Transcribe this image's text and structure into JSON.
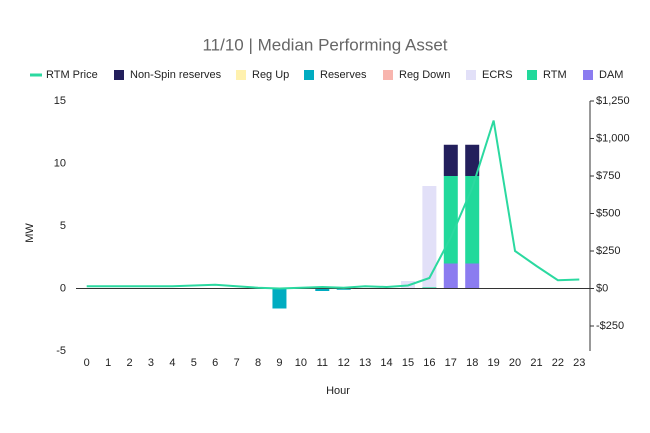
{
  "chart_data": {
    "type": "bar",
    "stacked": true,
    "title": "11/10 | Median Performing Asset",
    "x_label": "Hour",
    "y_label": "MW",
    "categories": [
      "0",
      "1",
      "2",
      "3",
      "4",
      "5",
      "6",
      "7",
      "8",
      "9",
      "10",
      "11",
      "12",
      "13",
      "14",
      "15",
      "16",
      "17",
      "18",
      "19",
      "20",
      "21",
      "22",
      "23"
    ],
    "ylim": [
      -5,
      15
    ],
    "yticks": [
      15,
      10,
      5,
      0,
      -5
    ],
    "y2lim": [
      -416.67,
      1250
    ],
    "y2ticks": [
      {
        "value": 1250,
        "label": "$1,250"
      },
      {
        "value": 1000,
        "label": "$1,000"
      },
      {
        "value": 750,
        "label": "$750"
      },
      {
        "value": 500,
        "label": "$500"
      },
      {
        "value": 250,
        "label": "$250"
      },
      {
        "value": 0,
        "label": "$0"
      },
      {
        "value": -250,
        "label": "-$250"
      }
    ],
    "grid": false,
    "legend": "top",
    "series": [
      {
        "name": "RTM Price",
        "type": "line",
        "axis": "y2",
        "color": "#2bd9a0",
        "values": [
          15,
          15,
          15,
          15,
          15,
          20,
          25,
          15,
          5,
          0,
          5,
          10,
          5,
          15,
          10,
          20,
          70,
          340,
          670,
          1120,
          250,
          150,
          55,
          60
        ]
      },
      {
        "name": "Non-Spin reserves",
        "color": "#231f5c",
        "values": [
          0,
          0,
          0,
          0,
          0,
          0,
          0,
          0,
          0,
          0,
          0,
          0,
          0,
          0,
          0,
          0,
          0,
          2.5,
          2.5,
          0,
          0,
          0,
          0,
          0
        ]
      },
      {
        "name": "Reg Up",
        "color": "#fff1ae",
        "values": [
          0,
          0,
          0,
          0,
          0,
          0,
          0,
          0,
          0,
          0,
          0,
          0,
          0,
          0,
          0,
          0,
          0,
          0,
          0,
          0,
          0,
          0,
          0,
          0
        ]
      },
      {
        "name": "Reserves",
        "color": "#00acc1",
        "values": [
          0,
          0,
          0,
          0,
          0,
          0,
          0,
          0,
          0,
          -1.6,
          0,
          -0.2,
          -0.1,
          0,
          0,
          0,
          0,
          0,
          0,
          0,
          0,
          0,
          0,
          0
        ]
      },
      {
        "name": "Reg Down",
        "color": "#f8b5ae",
        "values": [
          0,
          0,
          0,
          0,
          0,
          0,
          0,
          0,
          0,
          0,
          0,
          0,
          0,
          0,
          0,
          0,
          0,
          0,
          0,
          0,
          0,
          0,
          0,
          0
        ]
      },
      {
        "name": "ECRS",
        "color": "#e2e0f8",
        "values": [
          0,
          0,
          0,
          0,
          0,
          0,
          0,
          0,
          0,
          0,
          0,
          0,
          0,
          0,
          0,
          0.6,
          8.1,
          0,
          0,
          0,
          0,
          0,
          0,
          0
        ]
      },
      {
        "name": "RTM",
        "color": "#21d99b",
        "values": [
          0,
          0,
          0,
          0,
          0,
          0,
          0,
          0,
          0,
          0,
          0,
          0,
          0,
          0,
          0,
          0,
          0.1,
          7,
          7,
          0,
          0,
          0,
          0,
          0
        ]
      },
      {
        "name": "DAM",
        "color": "#8b7cf0",
        "values": [
          0,
          0,
          0,
          0,
          0,
          0,
          0,
          0,
          0,
          0,
          0,
          0,
          0,
          0,
          0,
          0,
          0,
          2,
          2,
          0,
          0,
          0,
          0,
          0
        ]
      }
    ]
  }
}
